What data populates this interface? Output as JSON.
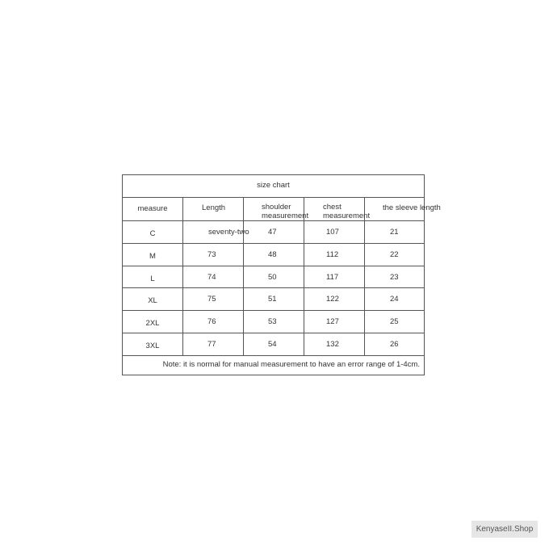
{
  "size_chart": {
    "title": "size chart",
    "headers": [
      "measure",
      "Length",
      "shoulder\nmeasurement",
      "chest\nmeasurement",
      "the sleeve length"
    ],
    "rows": [
      [
        "C",
        "seventy-two",
        "47",
        "107",
        "21"
      ],
      [
        "M",
        "73",
        "48",
        "112",
        "22"
      ],
      [
        "L",
        "74",
        "50",
        "117",
        "23"
      ],
      [
        "XL",
        "75",
        "51",
        "122",
        "24"
      ],
      [
        "2XL",
        "76",
        "53",
        "127",
        "25"
      ],
      [
        "3XL",
        "77",
        "54",
        "132",
        "26"
      ]
    ],
    "note": "Note: it is normal for manual measurement to have an error range of 1-4cm."
  },
  "watermark": "KenyaseII.Shop"
}
